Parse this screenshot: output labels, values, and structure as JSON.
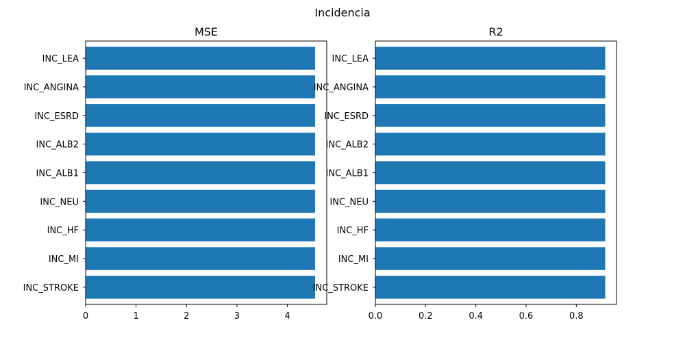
{
  "figure_title": "Incidencia",
  "chart_data": [
    {
      "type": "bar",
      "orientation": "horizontal",
      "title": "MSE",
      "categories": [
        "INC_STROKE",
        "INC_MI",
        "INC_HF",
        "INC_NEU",
        "INC_ALB1",
        "INC_ALB2",
        "INC_ESRD",
        "INC_ANGINA",
        "INC_LEA"
      ],
      "values": [
        4.55,
        4.55,
        4.55,
        4.55,
        4.55,
        4.55,
        4.55,
        4.55,
        4.55
      ],
      "xlim": [
        0,
        4.78
      ],
      "xticks": [
        0,
        1,
        2,
        3,
        4
      ],
      "xtick_labels": [
        "0",
        "1",
        "2",
        "3",
        "4"
      ],
      "color": "#1f77b4"
    },
    {
      "type": "bar",
      "orientation": "horizontal",
      "title": "R2",
      "categories": [
        "INC_STROKE",
        "INC_MI",
        "INC_HF",
        "INC_NEU",
        "INC_ALB1",
        "INC_ALB2",
        "INC_ESRD",
        "INC_ANGINA",
        "INC_LEA"
      ],
      "values": [
        0.915,
        0.915,
        0.915,
        0.915,
        0.915,
        0.915,
        0.915,
        0.915,
        0.915
      ],
      "xlim": [
        0,
        0.96
      ],
      "xticks": [
        0,
        0.2,
        0.4,
        0.6,
        0.8
      ],
      "xtick_labels": [
        "0.0",
        "0.2",
        "0.4",
        "0.6",
        "0.8"
      ],
      "color": "#1f77b4"
    }
  ]
}
